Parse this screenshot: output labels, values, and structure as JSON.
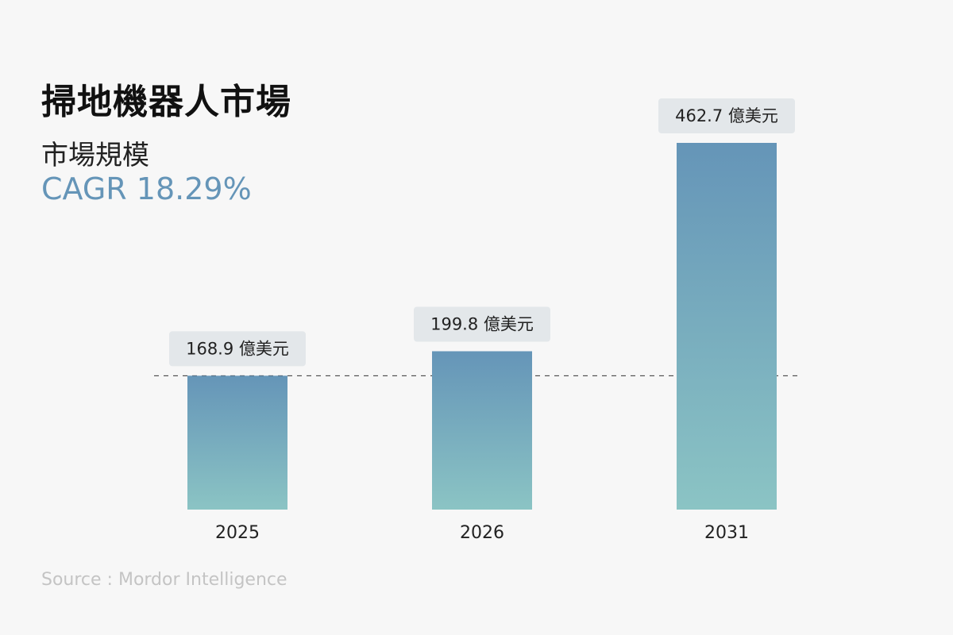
{
  "header": {
    "title": "掃地機器人市場",
    "subtitle": "市場規模",
    "cagr": "CAGR 18.29%"
  },
  "footer": {
    "source": "Source : Mordor Intelligence"
  },
  "colors": {
    "bar_top": "#6595b8",
    "bar_bottom": "#8bc4c4",
    "label_bg": "#e3e7ea",
    "accent": "#6595b8",
    "baseline_dash": "#333333"
  },
  "chart_data": {
    "type": "bar",
    "categories": [
      "2025",
      "2026",
      "2031"
    ],
    "values": [
      168.9,
      199.8,
      462.7
    ],
    "value_labels": [
      "168.9 億美元",
      "199.8 億美元",
      "462.7 億美元"
    ],
    "unit": "億美元",
    "reference_line_value": 168.9,
    "grid": false,
    "legend": "none"
  }
}
